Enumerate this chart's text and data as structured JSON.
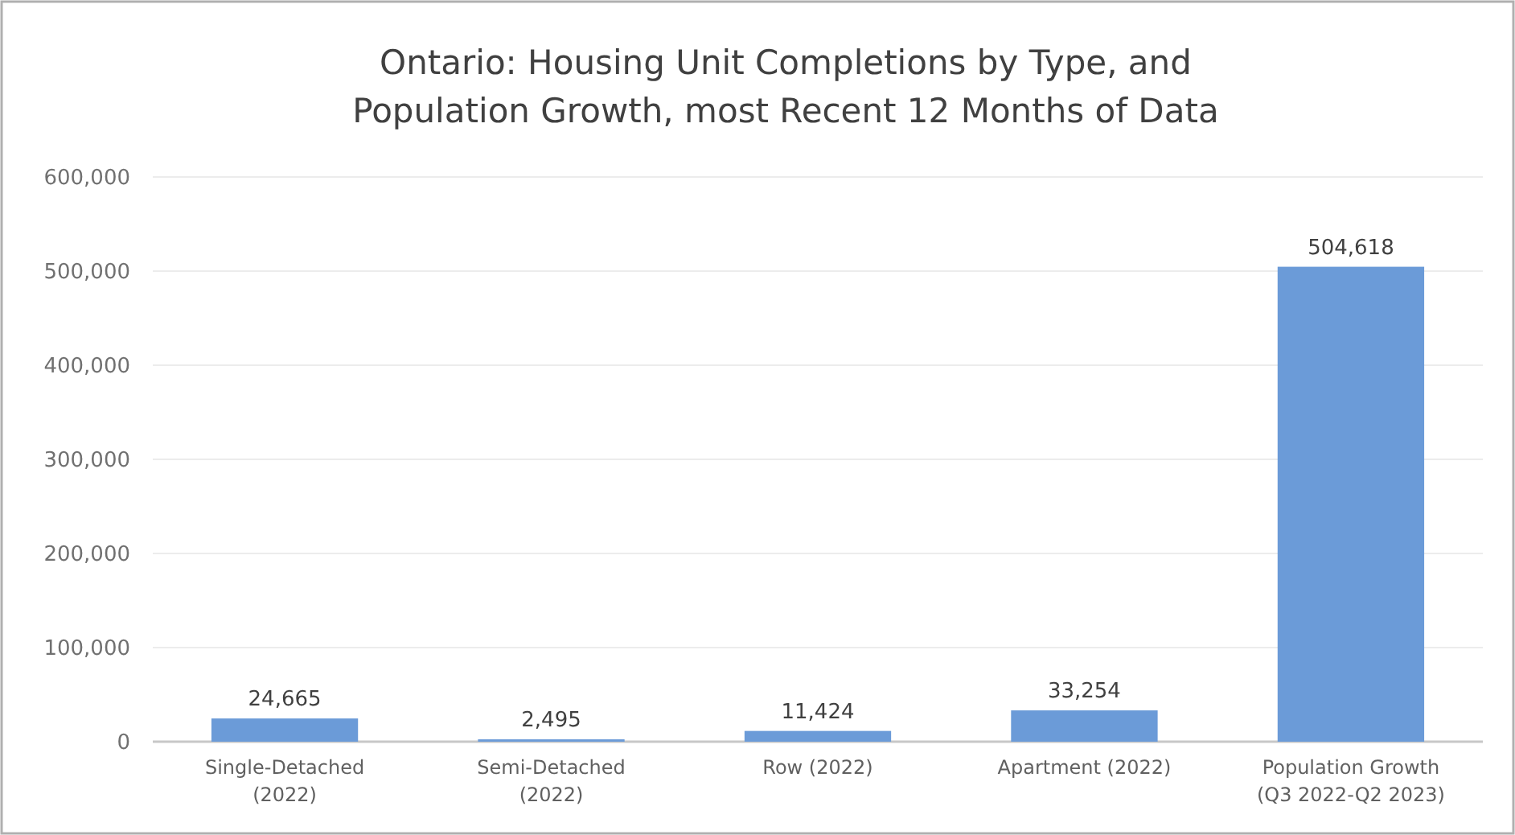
{
  "chart_data": {
    "type": "bar",
    "title": "Ontario: Housing Unit Completions by Type, and Population Growth, most Recent 12 Months of Data",
    "categories": [
      "Single-Detached (2022)",
      "Semi-Detached (2022)",
      "Row (2022)",
      "Apartment (2022)",
      "Population Growth (Q3 2022-Q2 2023)"
    ],
    "values": [
      24665,
      2495,
      11424,
      33254,
      504618
    ],
    "value_labels": [
      "24,665",
      "2,495",
      "11,424",
      "33,254",
      "504,618"
    ],
    "color": "#6b9bd8",
    "grid": "y",
    "ylim": [
      0,
      600000
    ],
    "yticks": [
      0,
      {
        "value": 100000,
        "label": "100,000"
      },
      {
        "value": 200000,
        "label": "200,000"
      },
      {
        "value": 300000,
        "label": "300,000"
      },
      {
        "value": 400000,
        "label": "400,000"
      },
      {
        "value": 500000,
        "label": "500,000"
      },
      {
        "value": 600000,
        "label": "600,000"
      }
    ]
  }
}
